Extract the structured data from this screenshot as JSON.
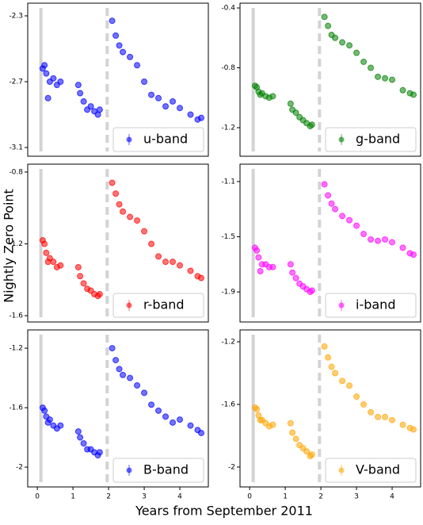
{
  "xlabel": "Years from September 2011",
  "ylabel": "Nightly Zero Point",
  "chart_data": [
    {
      "type": "scatter",
      "xlim": [
        -0.27,
        4.8
      ],
      "ylim": [
        -3.153,
        -2.223
      ],
      "yticks": [
        -2.3,
        -2.7,
        -3.1
      ],
      "legend": "lower right",
      "vlines": [
        {
          "x": 0.1,
          "style": "solid"
        },
        {
          "x": 1.96,
          "style": "dashed"
        }
      ],
      "series": [
        {
          "name": "u-band",
          "color": "#0000ff",
          "x": [
            0.15,
            0.2,
            0.25,
            0.3,
            0.35,
            0.45,
            0.55,
            0.65,
            1.15,
            1.2,
            1.3,
            1.4,
            1.5,
            1.6,
            1.7,
            1.75,
            2.1,
            2.2,
            2.3,
            2.4,
            2.6,
            2.8,
            3.0,
            3.2,
            3.4,
            3.6,
            3.8,
            4.0,
            4.3,
            4.5,
            4.6
          ],
          "values": [
            -2.62,
            -2.6,
            -2.65,
            -2.8,
            -2.7,
            -2.68,
            -2.72,
            -2.7,
            -2.72,
            -2.77,
            -2.82,
            -2.87,
            -2.85,
            -2.88,
            -2.9,
            -2.87,
            -2.33,
            -2.42,
            -2.48,
            -2.52,
            -2.55,
            -2.6,
            -2.7,
            -2.78,
            -2.8,
            -2.85,
            -2.82,
            -2.86,
            -2.9,
            -2.93,
            -2.92
          ]
        }
      ]
    },
    {
      "type": "scatter",
      "xlim": [
        -0.27,
        4.8
      ],
      "ylim": [
        -1.391,
        -0.368
      ],
      "yticks": [
        -0.4,
        -0.8,
        -1.2
      ],
      "legend": "lower right",
      "vlines": [
        {
          "x": 0.1,
          "style": "solid"
        },
        {
          "x": 1.96,
          "style": "dashed"
        }
      ],
      "series": [
        {
          "name": "g-band",
          "color": "#008000",
          "x": [
            0.15,
            0.2,
            0.25,
            0.3,
            0.35,
            0.45,
            0.55,
            0.65,
            1.15,
            1.2,
            1.3,
            1.4,
            1.5,
            1.6,
            1.7,
            1.75,
            2.1,
            2.2,
            2.3,
            2.4,
            2.6,
            2.8,
            3.0,
            3.2,
            3.4,
            3.6,
            3.8,
            4.0,
            4.3,
            4.5,
            4.6
          ],
          "values": [
            -0.92,
            -0.93,
            -0.96,
            -0.98,
            -0.97,
            -0.99,
            -1.0,
            -0.99,
            -1.04,
            -1.08,
            -1.1,
            -1.13,
            -1.15,
            -1.17,
            -1.19,
            -1.18,
            -0.46,
            -0.52,
            -0.58,
            -0.6,
            -0.63,
            -0.65,
            -0.7,
            -0.76,
            -0.8,
            -0.86,
            -0.87,
            -0.88,
            -0.95,
            -0.97,
            -0.98
          ]
        }
      ]
    },
    {
      "type": "scatter",
      "xlim": [
        -0.27,
        4.8
      ],
      "ylim": [
        -1.635,
        -0.756
      ],
      "yticks": [
        -0.8,
        -1.2,
        -1.6
      ],
      "legend": "lower right",
      "vlines": [
        {
          "x": 0.1,
          "style": "solid"
        },
        {
          "x": 1.96,
          "style": "dashed"
        }
      ],
      "series": [
        {
          "name": "r-band",
          "color": "#ff0000",
          "x": [
            0.15,
            0.2,
            0.25,
            0.3,
            0.35,
            0.45,
            0.55,
            0.65,
            1.15,
            1.2,
            1.3,
            1.4,
            1.5,
            1.6,
            1.7,
            1.75,
            2.1,
            2.2,
            2.3,
            2.4,
            2.6,
            2.8,
            3.0,
            3.2,
            3.4,
            3.6,
            3.8,
            4.0,
            4.3,
            4.5,
            4.6
          ],
          "values": [
            -1.18,
            -1.2,
            -1.25,
            -1.3,
            -1.28,
            -1.3,
            -1.33,
            -1.32,
            -1.33,
            -1.38,
            -1.42,
            -1.45,
            -1.46,
            -1.48,
            -1.49,
            -1.48,
            -0.86,
            -0.92,
            -0.98,
            -1.02,
            -1.05,
            -1.07,
            -1.13,
            -1.2,
            -1.27,
            -1.3,
            -1.3,
            -1.32,
            -1.35,
            -1.38,
            -1.39
          ]
        }
      ]
    },
    {
      "type": "scatter",
      "xlim": [
        -0.27,
        4.8
      ],
      "ylim": [
        -2.118,
        -0.974
      ],
      "yticks": [
        -1.1,
        -1.5,
        -1.9
      ],
      "legend": "lower right",
      "vlines": [
        {
          "x": 0.1,
          "style": "solid"
        },
        {
          "x": 1.96,
          "style": "dashed"
        }
      ],
      "series": [
        {
          "name": "i-band",
          "color": "#ff00ff",
          "x": [
            0.15,
            0.2,
            0.25,
            0.3,
            0.35,
            0.45,
            0.55,
            0.65,
            1.15,
            1.2,
            1.3,
            1.4,
            1.5,
            1.6,
            1.7,
            1.75,
            2.1,
            2.2,
            2.3,
            2.4,
            2.6,
            2.8,
            3.0,
            3.2,
            3.4,
            3.6,
            3.8,
            4.0,
            4.3,
            4.5,
            4.6
          ],
          "values": [
            -1.58,
            -1.6,
            -1.65,
            -1.75,
            -1.7,
            -1.7,
            -1.72,
            -1.72,
            -1.7,
            -1.76,
            -1.8,
            -1.84,
            -1.86,
            -1.88,
            -1.9,
            -1.89,
            -1.12,
            -1.2,
            -1.26,
            -1.3,
            -1.35,
            -1.38,
            -1.42,
            -1.48,
            -1.52,
            -1.53,
            -1.52,
            -1.54,
            -1.58,
            -1.62,
            -1.63
          ]
        }
      ]
    },
    {
      "type": "scatter",
      "xlim": [
        -0.27,
        4.8
      ],
      "ylim": [
        -2.133,
        -1.077
      ],
      "yticks": [
        -1.2,
        -1.6,
        -2.0
      ],
      "xticks": [
        0,
        1,
        2,
        3,
        4
      ],
      "legend": "lower right",
      "vlines": [
        {
          "x": 0.1,
          "style": "solid"
        },
        {
          "x": 1.96,
          "style": "dashed"
        }
      ],
      "series": [
        {
          "name": "B-band",
          "color": "#0000ff",
          "x": [
            0.15,
            0.2,
            0.25,
            0.3,
            0.35,
            0.45,
            0.55,
            0.65,
            1.15,
            1.2,
            1.3,
            1.4,
            1.5,
            1.6,
            1.7,
            1.75,
            2.1,
            2.2,
            2.3,
            2.4,
            2.6,
            2.8,
            3.0,
            3.2,
            3.4,
            3.6,
            3.8,
            4.0,
            4.3,
            4.5,
            4.6
          ],
          "values": [
            -1.6,
            -1.62,
            -1.66,
            -1.7,
            -1.68,
            -1.72,
            -1.74,
            -1.72,
            -1.76,
            -1.8,
            -1.84,
            -1.88,
            -1.88,
            -1.9,
            -1.92,
            -1.9,
            -1.2,
            -1.28,
            -1.34,
            -1.38,
            -1.4,
            -1.45,
            -1.5,
            -1.58,
            -1.62,
            -1.66,
            -1.7,
            -1.68,
            -1.72,
            -1.75,
            -1.77
          ]
        }
      ]
    },
    {
      "type": "scatter",
      "xlim": [
        -0.27,
        4.8
      ],
      "ylim": [
        -2.127,
        -1.124
      ],
      "yticks": [
        -1.2,
        -1.6,
        -2.0
      ],
      "xticks": [
        0,
        1,
        2,
        3,
        4
      ],
      "legend": "lower right",
      "vlines": [
        {
          "x": 0.1,
          "style": "solid"
        },
        {
          "x": 1.96,
          "style": "dashed"
        }
      ],
      "series": [
        {
          "name": "V-band",
          "color": "#ffa500",
          "x": [
            0.15,
            0.2,
            0.25,
            0.3,
            0.35,
            0.45,
            0.55,
            0.65,
            1.15,
            1.2,
            1.3,
            1.4,
            1.5,
            1.6,
            1.7,
            1.75,
            2.1,
            2.2,
            2.3,
            2.4,
            2.6,
            2.8,
            3.0,
            3.2,
            3.4,
            3.6,
            3.8,
            4.0,
            4.3,
            4.5,
            4.6
          ],
          "values": [
            -1.62,
            -1.63,
            -1.67,
            -1.7,
            -1.7,
            -1.72,
            -1.74,
            -1.73,
            -1.72,
            -1.78,
            -1.82,
            -1.86,
            -1.88,
            -1.9,
            -1.93,
            -1.92,
            -1.23,
            -1.3,
            -1.36,
            -1.4,
            -1.45,
            -1.48,
            -1.55,
            -1.6,
            -1.65,
            -1.68,
            -1.68,
            -1.7,
            -1.73,
            -1.75,
            -1.76
          ]
        }
      ]
    }
  ]
}
